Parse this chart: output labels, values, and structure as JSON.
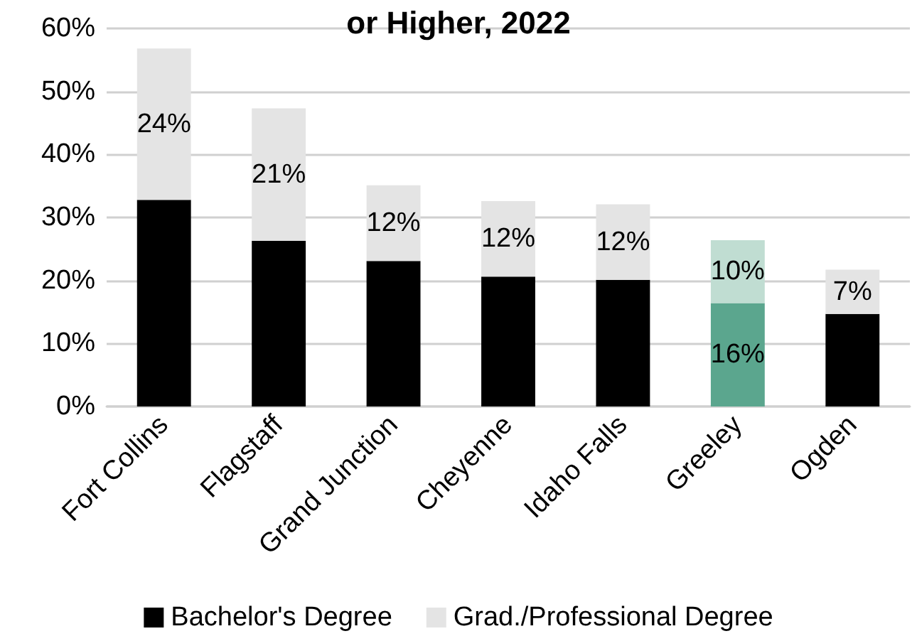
{
  "chart_data": {
    "type": "bar",
    "title": "or Higher, 2022",
    "stacked": true,
    "categories": [
      "Fort Collins",
      "Flagstaff",
      "Grand Junction",
      "Cheyenne",
      "Idaho Falls",
      "Greeley",
      "Ogden"
    ],
    "series": [
      {
        "name": "Bachelor's Degree",
        "color": "#000000",
        "colors": [
          "#000000",
          "#000000",
          "#000000",
          "#000000",
          "#000000",
          "#5ba68e",
          "#000000"
        ],
        "values": [
          32.8,
          26.3,
          23.1,
          20.6,
          20.1,
          16.4,
          14.7
        ],
        "value_labels": [
          null,
          null,
          null,
          null,
          null,
          "16%",
          null
        ]
      },
      {
        "name": "Grad./Professional Degree",
        "color": "#e4e4e4",
        "colors": [
          "#e4e4e4",
          "#e4e4e4",
          "#e4e4e4",
          "#e4e4e4",
          "#e4e4e4",
          "#c0ddd2",
          "#e4e4e4"
        ],
        "values": [
          24,
          21,
          12,
          12,
          12,
          10,
          7
        ],
        "value_labels": [
          "24%",
          "21%",
          "12%",
          "12%",
          "12%",
          "10%",
          "7%"
        ]
      }
    ],
    "ylim": [
      0,
      60
    ],
    "yticks": [
      {
        "value": 0,
        "label": "0%"
      },
      {
        "value": 10,
        "label": "10%"
      },
      {
        "value": 20,
        "label": "20%"
      },
      {
        "value": 30,
        "label": "30%"
      },
      {
        "value": 40,
        "label": "40%"
      },
      {
        "value": 50,
        "label": "50%"
      },
      {
        "value": 60,
        "label": "60%"
      }
    ],
    "grid": "y",
    "legend": "bottom"
  }
}
